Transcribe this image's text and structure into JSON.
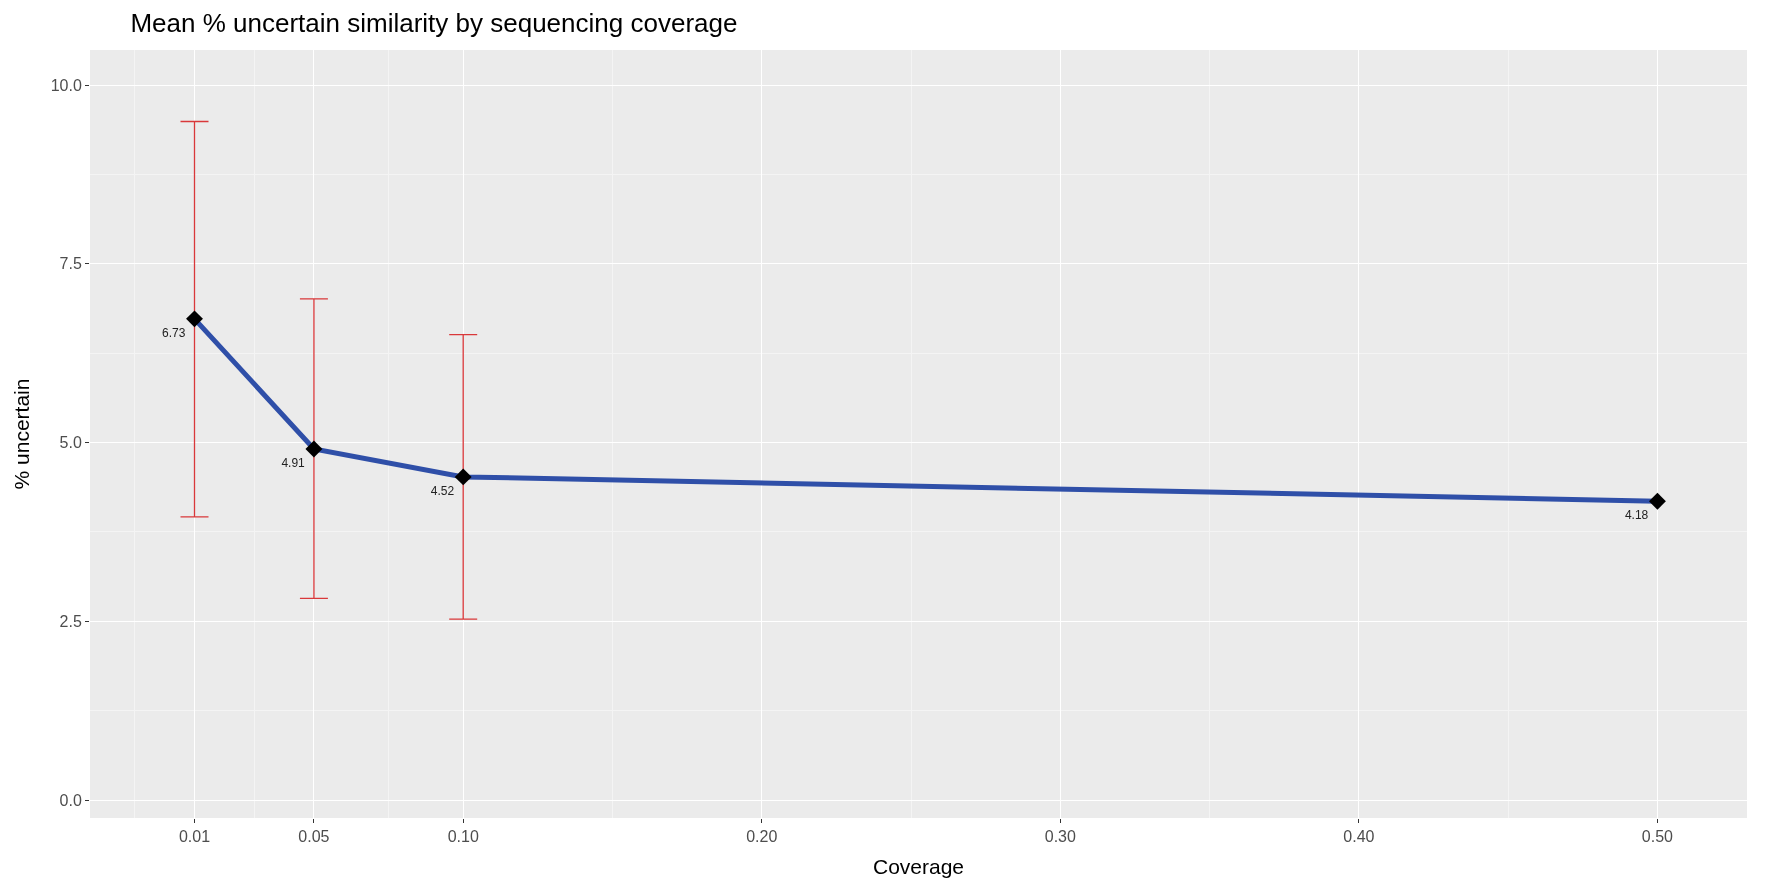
{
  "chart_data": {
    "type": "line",
    "title": "Mean % uncertain similarity by sequencing coverage",
    "xlabel": "Coverage",
    "ylabel": "% uncertain",
    "x": [
      0.01,
      0.05,
      0.1,
      0.5
    ],
    "series": [
      {
        "color": "#2f4fa8",
        "values": [
          6.73,
          4.91,
          4.52,
          4.18
        ],
        "errors": [
          [
            3.96,
            9.49
          ],
          [
            2.82,
            7.01
          ],
          [
            2.53,
            6.51
          ],
          null
        ]
      }
    ],
    "data_labels": true,
    "marker": "diamond",
    "grid": true,
    "xlim": [
      -0.025,
      0.53
    ],
    "xticks": [
      {
        "value": 0.01,
        "label": "0.01"
      },
      {
        "value": 0.05,
        "label": "0.05"
      },
      {
        "value": 0.1,
        "label": "0.10"
      },
      {
        "value": 0.2,
        "label": "0.20"
      },
      {
        "value": 0.3,
        "label": "0.30"
      },
      {
        "value": 0.4,
        "label": "0.40"
      },
      {
        "value": 0.5,
        "label": "0.50"
      }
    ],
    "ylim": [
      -0.25,
      10.49
    ],
    "yticks": [
      {
        "value": 0,
        "label": "0.0"
      },
      {
        "value": 2.5,
        "label": "2.5"
      },
      {
        "value": 5,
        "label": "5.0"
      },
      {
        "value": 7.5,
        "label": "7.5"
      },
      {
        "value": 10,
        "label": "10.0"
      }
    ]
  }
}
